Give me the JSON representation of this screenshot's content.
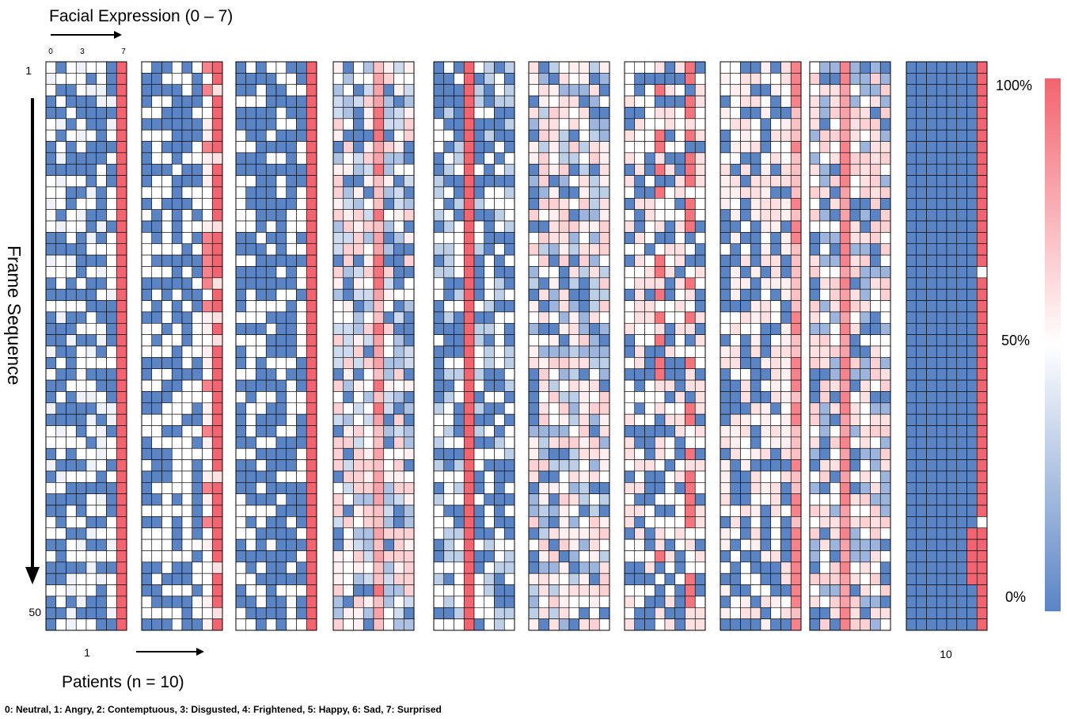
{
  "labels": {
    "x_axis_title": "Facial Expression  (0 – 7)",
    "y_axis_title": "Frame Sequence",
    "patients_title": "Patients (n  =  10)",
    "col_ticks": [
      "0",
      "3",
      "7"
    ],
    "frame_start": "1",
    "frame_end": "50",
    "patient_first": "1",
    "patient_last": "10",
    "legend_text": "0: Neutral, 1: Angry, 2: Contemptuous, 3: Disgusted, 4: Frightened, 5: Happy, 6: Sad, 7: Surprised"
  },
  "colorbar": {
    "ticks": [
      "100%",
      "50%",
      "0%"
    ],
    "low_color": "#5b84c4",
    "mid_color": "#ffffff",
    "high_color": "#f2646f"
  },
  "chart_data": {
    "type": "heatmap",
    "panels": 10,
    "frames": 50,
    "expressions": 8,
    "expression_index_range": [
      0,
      7
    ],
    "value_range_percent": [
      0,
      100
    ],
    "patient_profiles": [
      {
        "patient": "1",
        "dominant_expression": 7,
        "pattern": "mostly 0% with one solid high column at expression 7"
      },
      {
        "patient": "2",
        "dominant_expression": 7,
        "pattern": "mostly 0% with high values at expressions 6 and 7"
      },
      {
        "patient": "3",
        "dominant_expression": 7,
        "pattern": "mostly 0% with one solid high column at expression 7"
      },
      {
        "patient": "4",
        "dominant_expression": 4,
        "pattern": "mixed mid values with high column around expression 4"
      },
      {
        "patient": "5",
        "dominant_expression": 3,
        "pattern": "solid high column at expression 3, rest low"
      },
      {
        "patient": "6",
        "dominant_expression": null,
        "pattern": "mixed low and mid values across all expressions"
      },
      {
        "patient": "7",
        "dominant_expression": 6,
        "pattern": "mostly low with intermittent high at expressions 3 and 6"
      },
      {
        "patient": "8",
        "dominant_expression": 7,
        "pattern": "low with high at expression 7 and pinkish mid bands"
      },
      {
        "patient": "9",
        "dominant_expression": 3,
        "pattern": "high column at expression 3 with pink mid values"
      },
      {
        "patient": "10",
        "dominant_expression": 7,
        "pattern": "all 0% except a high column at expression 7"
      }
    ]
  }
}
